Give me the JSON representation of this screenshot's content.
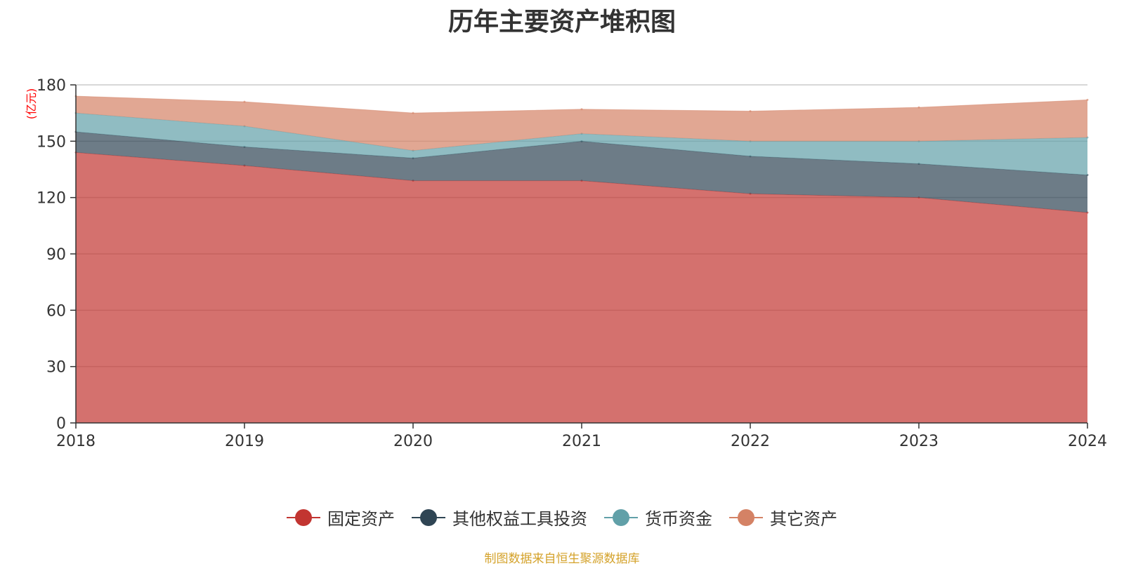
{
  "chart_data": {
    "type": "area",
    "stacked": true,
    "title": "历年主要资产堆积图",
    "unit_label": "(亿元)",
    "source_note": "制图数据来自恒生聚源数据库",
    "x": [
      "2018",
      "2019",
      "2020",
      "2021",
      "2022",
      "2023",
      "2024"
    ],
    "ylim": [
      0,
      180
    ],
    "yticks": [
      0,
      30,
      60,
      90,
      120,
      150,
      180
    ],
    "grid": true,
    "legend_position": "bottom",
    "series": [
      {
        "name": "固定资产",
        "color": "#c23531",
        "values": [
          144,
          137,
          129,
          129,
          122,
          120,
          112
        ]
      },
      {
        "name": "其他权益工具投资",
        "color": "#2f4554",
        "values": [
          11,
          10,
          12,
          21,
          20,
          18,
          20
        ]
      },
      {
        "name": "货币资金",
        "color": "#61a0a8",
        "values": [
          10,
          11,
          4,
          4,
          8,
          12,
          20
        ]
      },
      {
        "name": "其它资产",
        "color": "#d48265",
        "values": [
          9,
          13,
          20,
          13,
          16,
          18,
          20
        ]
      }
    ]
  }
}
